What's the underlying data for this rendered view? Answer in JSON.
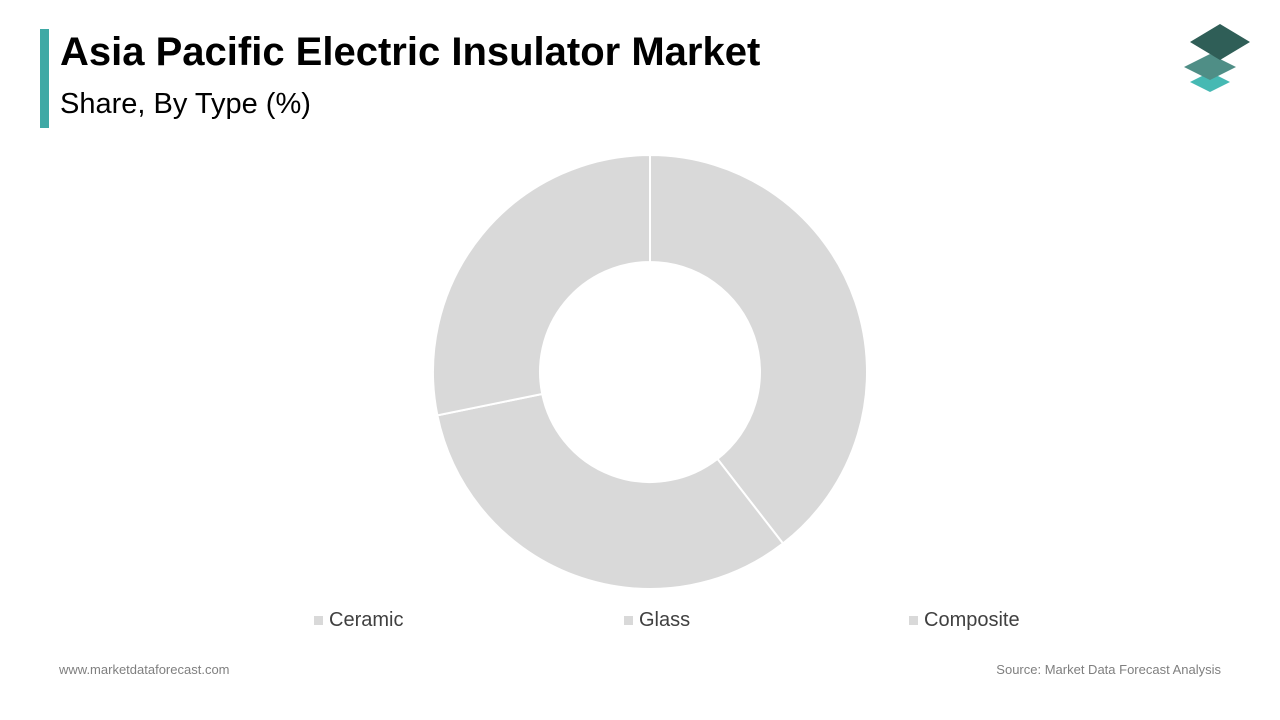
{
  "header": {
    "title": "Asia Pacific Electric Insulator Market",
    "subtitle": "Share, By Type (%)"
  },
  "footer": {
    "website": "www.marketdataforecast.com",
    "source": "Source: Market Data Forecast Analysis"
  },
  "logo": {
    "icon": "stacked-layers-icon",
    "colors": [
      "#2f5e57",
      "#4f8e86",
      "#46b9b3"
    ]
  },
  "colors": {
    "accent": "#3fa9a5",
    "slice": "#d9d9d9",
    "separator": "#ffffff",
    "legend_text": "#404040",
    "footer_text": "#7f7f7f"
  },
  "chart_data": {
    "type": "pie",
    "variant": "donut",
    "title": "Asia Pacific Electric Insulator Market",
    "subtitle": "Share, By Type (%)",
    "categories": [
      "Ceramic",
      "Glass",
      "Composite"
    ],
    "values": [
      39.5,
      32.3,
      28.2
    ],
    "legend_position": "bottom"
  }
}
